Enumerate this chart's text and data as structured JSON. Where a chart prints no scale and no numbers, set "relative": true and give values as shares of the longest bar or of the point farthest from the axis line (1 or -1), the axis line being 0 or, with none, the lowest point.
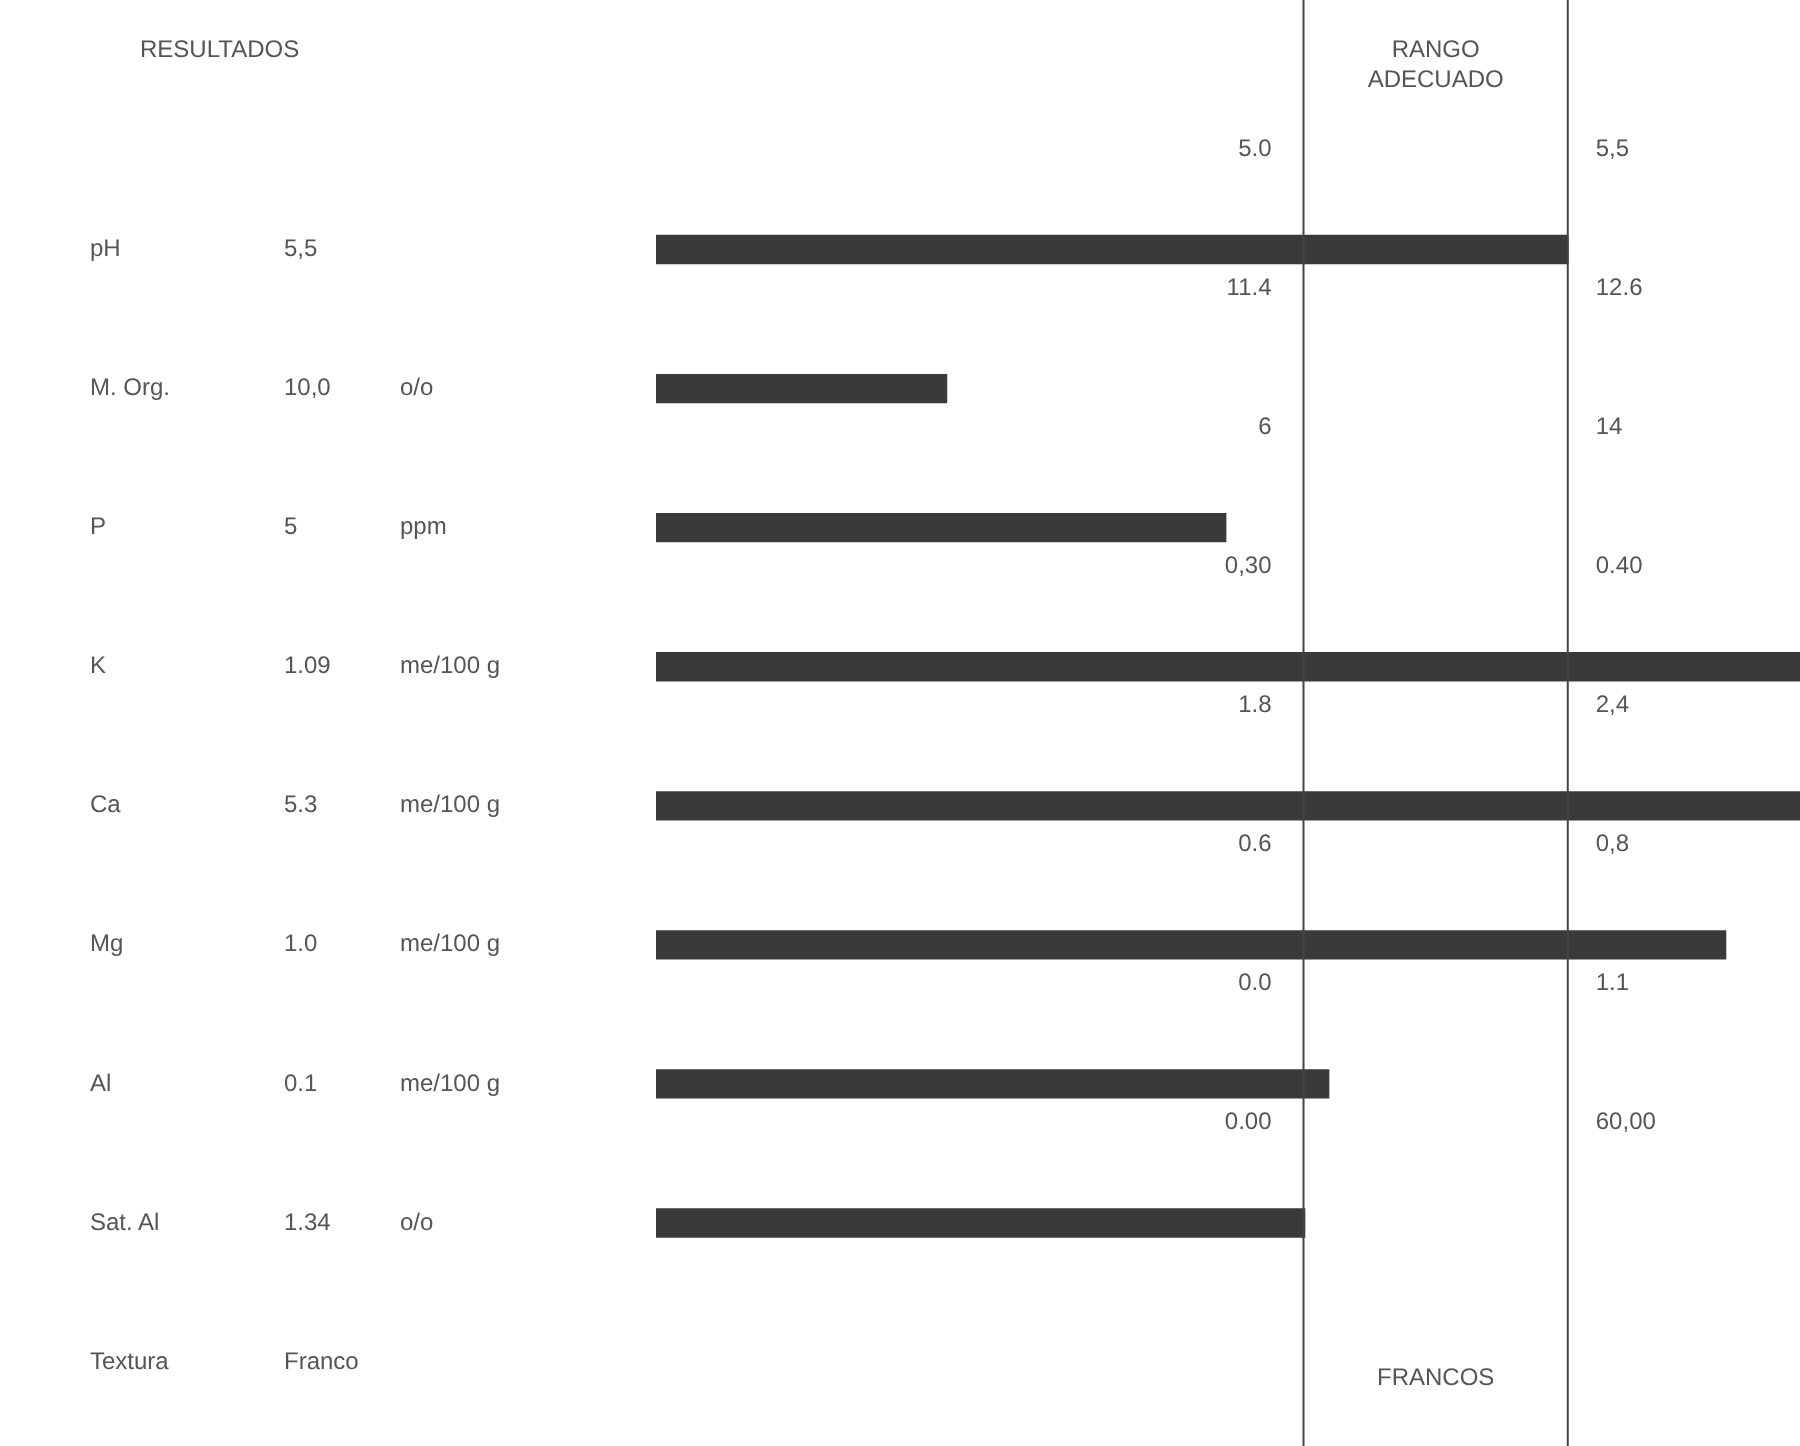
{
  "chart_data": {
    "type": "bar",
    "orientation": "horizontal",
    "relative": true,
    "title": "RESULTADOS",
    "categories": [
      "pH",
      "M. Org.",
      "P",
      "K",
      "Ca",
      "Mg",
      "Al",
      "Sat. Al",
      "Textura"
    ],
    "values": [
      0.797,
      0.254,
      0.498,
      1,
      1,
      0.935,
      0.588,
      0.567,
      null
    ],
    "color": "#3a3a3a",
    "ref_lines": [
      {
        "axis": "x",
        "value": 0.566,
        "color": "#444444"
      },
      {
        "axis": "x",
        "value": 0.797,
        "color": "#444444"
      }
    ],
    "annotations": [
      "RANGO ADECUADO",
      "5,5",
      "10,0",
      "5",
      "1.09",
      "5.3",
      "1.0",
      "0.1",
      "1.34",
      "Franco",
      "o/o",
      "ppm",
      "me/100 g",
      "me/100 g",
      "me/100 g",
      "me/100 g",
      "o/o",
      "5.0",
      "5,5",
      "11.4",
      "12.6",
      "6",
      "14",
      "0,30",
      "0.40",
      "1.8",
      "2,4",
      "0.6",
      "0,8",
      "0.0",
      "1.1",
      "0.00",
      "60,00",
      "FRANCOS"
    ]
  }
}
